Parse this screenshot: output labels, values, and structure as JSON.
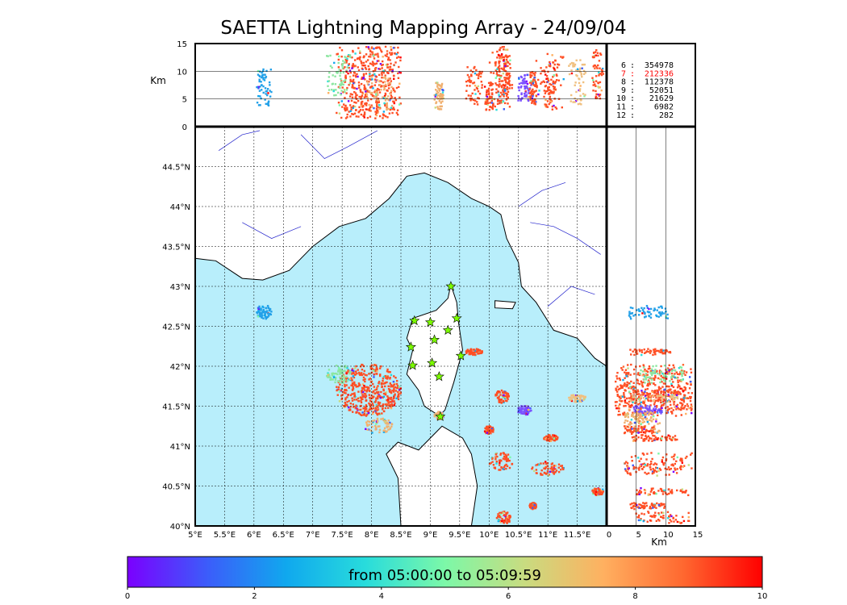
{
  "chart_data": {
    "type": "scatter",
    "title": "SAETTA Lightning Mapping Array - 24/09/04",
    "map": {
      "xlim": [
        5.0,
        12.0
      ],
      "ylim": [
        40.0,
        45.0
      ],
      "x_ticks": [
        "5°E",
        "5.5°E",
        "6°E",
        "6.5°E",
        "7°E",
        "7.5°E",
        "8°E",
        "8.5°E",
        "9°E",
        "9.5°E",
        "10°E",
        "10.5°E",
        "11°E",
        "11.5°E"
      ],
      "y_ticks": [
        "40°N",
        "40.5°N",
        "41°N",
        "41.5°N",
        "42°N",
        "42.5°N",
        "43°N",
        "43.5°N",
        "44°N",
        "44.5°N"
      ],
      "grid": true,
      "sea_color": "#b8eefb",
      "land_color": "#ffffff"
    },
    "altitude_panel": {
      "ylabel": "Km",
      "ylim": [
        0,
        15
      ],
      "y_ticks": [
        "0",
        "5",
        "10",
        "15"
      ]
    },
    "side_panel": {
      "xlabel": "Km",
      "xlim": [
        0,
        15
      ],
      "x_ticks": [
        "0",
        "5",
        "10",
        "15"
      ]
    },
    "stations": [
      {
        "lon": 9.35,
        "lat": 43.0
      },
      {
        "lon": 8.73,
        "lat": 42.57
      },
      {
        "lon": 9.0,
        "lat": 42.55
      },
      {
        "lon": 9.45,
        "lat": 42.6
      },
      {
        "lon": 9.3,
        "lat": 42.45
      },
      {
        "lon": 9.07,
        "lat": 42.33
      },
      {
        "lon": 8.67,
        "lat": 42.24
      },
      {
        "lon": 9.52,
        "lat": 42.13
      },
      {
        "lon": 9.03,
        "lat": 42.04
      },
      {
        "lon": 8.7,
        "lat": 42.01
      },
      {
        "lon": 9.15,
        "lat": 41.87
      },
      {
        "lon": 9.17,
        "lat": 41.37
      }
    ],
    "station_count_table": [
      {
        "stations": "6",
        "count": "354978",
        "highlight": false
      },
      {
        "stations": "7",
        "count": "212336",
        "highlight": true
      },
      {
        "stations": "8",
        "count": "112378",
        "highlight": false
      },
      {
        "stations": "9",
        "count": "52051",
        "highlight": false
      },
      {
        "stations": "10",
        "count": "21629",
        "highlight": false
      },
      {
        "stations": "11",
        "count": "6982",
        "highlight": false
      },
      {
        "stations": "12",
        "count": "282",
        "highlight": false
      }
    ],
    "colorbar": {
      "label": "from 05:00:00 to 05:09:59",
      "range": [
        0,
        10
      ],
      "ticks": [
        "0",
        "2",
        "4",
        "6",
        "8",
        "10"
      ],
      "colors": [
        "#7b00ff",
        "#3c5cfa",
        "#10a8ee",
        "#28dcdc",
        "#7cf8a8",
        "#c8dc80",
        "#ffb060",
        "#ff6830",
        "#ff0000"
      ]
    },
    "storms": [
      {
        "lon": 7.95,
        "lat": 41.7,
        "rlon": 0.55,
        "rlat": 0.33,
        "color": "#ff4e24",
        "alt": [
          1.5,
          14.5
        ]
      },
      {
        "lon": 7.45,
        "lat": 41.9,
        "rlon": 0.22,
        "rlat": 0.12,
        "color": "#8ce6a0",
        "alt": [
          5.5,
          13.0
        ]
      },
      {
        "lon": 8.12,
        "lat": 41.25,
        "rlon": 0.25,
        "rlat": 0.1,
        "color": "#f0b070",
        "alt": [
          3.0,
          9.0
        ]
      },
      {
        "lon": 6.17,
        "lat": 42.68,
        "rlon": 0.13,
        "rlat": 0.09,
        "color": "#22a0e8",
        "alt": [
          3.5,
          10.5
        ]
      },
      {
        "lon": 10.2,
        "lat": 40.8,
        "rlon": 0.2,
        "rlat": 0.12,
        "color": "#ff4e24",
        "alt": [
          3.0,
          14.5
        ]
      },
      {
        "lon": 11.0,
        "lat": 40.72,
        "rlon": 0.28,
        "rlat": 0.09,
        "color": "#ff4e24",
        "alt": [
          3.0,
          13.5
        ]
      },
      {
        "lon": 10.22,
        "lat": 41.62,
        "rlon": 0.12,
        "rlat": 0.08,
        "color": "#ff4e24",
        "alt": [
          4.0,
          13.0
        ]
      },
      {
        "lon": 10.6,
        "lat": 41.45,
        "rlon": 0.12,
        "rlat": 0.06,
        "color": "#7a50ff",
        "alt": [
          4.5,
          9.5
        ]
      },
      {
        "lon": 10.0,
        "lat": 41.2,
        "rlon": 0.08,
        "rlat": 0.05,
        "color": "#ff4e24",
        "alt": [
          3.0,
          8.0
        ]
      },
      {
        "lon": 11.85,
        "lat": 40.43,
        "rlon": 0.1,
        "rlat": 0.05,
        "color": "#ff4e24",
        "alt": [
          5.0,
          14.0
        ]
      },
      {
        "lon": 10.25,
        "lat": 40.1,
        "rlon": 0.12,
        "rlat": 0.08,
        "color": "#ff4e24",
        "alt": [
          5.0,
          14.0
        ]
      },
      {
        "lon": 9.75,
        "lat": 42.18,
        "rlon": 0.15,
        "rlat": 0.04,
        "color": "#ff4e24",
        "alt": [
          4.0,
          11.0
        ]
      },
      {
        "lon": 9.15,
        "lat": 41.38,
        "rlon": 0.08,
        "rlat": 0.05,
        "color": "#f0b070",
        "alt": [
          3.0,
          8.0
        ]
      },
      {
        "lon": 11.05,
        "lat": 41.1,
        "rlon": 0.12,
        "rlat": 0.04,
        "color": "#ff4e24",
        "alt": [
          4.0,
          12.0
        ]
      },
      {
        "lon": 10.75,
        "lat": 40.25,
        "rlon": 0.06,
        "rlat": 0.04,
        "color": "#ff4e24",
        "alt": [
          4.0,
          10.0
        ]
      },
      {
        "lon": 11.5,
        "lat": 41.6,
        "rlon": 0.15,
        "rlat": 0.05,
        "color": "#f0c080",
        "alt": [
          4.0,
          12.0
        ]
      }
    ]
  }
}
